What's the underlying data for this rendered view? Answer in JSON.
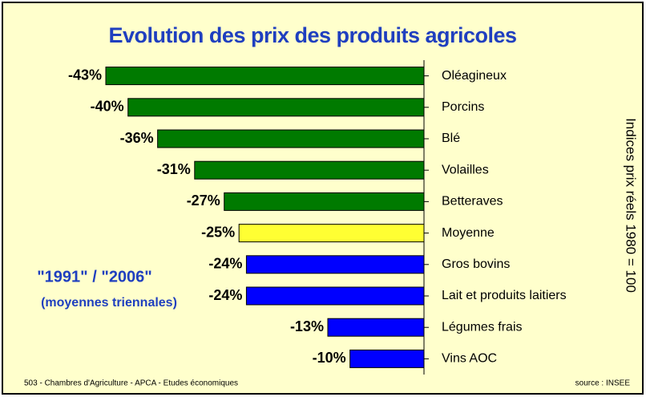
{
  "chart_data": {
    "type": "bar",
    "orientation": "horizontal",
    "title": "Evolution des prix des produits agricoles",
    "annotations": [
      "\"1991\" / \"2006\"",
      "(moyennes triennales)"
    ],
    "y2_label": "Indices prix réels 1980 = 100",
    "footer_left": "503 - Chambres d'Agriculture - APCA - Etudes économiques",
    "footer_right": "source : INSEE",
    "categories": [
      "Oléagineux",
      "Porcins",
      "Blé",
      "Volailles",
      "Betteraves",
      "Moyenne",
      "Gros bovins",
      "Lait et produits laitiers",
      "Légumes frais",
      "Vins AOC"
    ],
    "values": [
      -43,
      -40,
      -36,
      -31,
      -27,
      -25,
      -24,
      -24,
      -13,
      -10
    ],
    "value_labels": [
      "-43%",
      "-40%",
      "-36%",
      "-31%",
      "-27%",
      "-25%",
      "-24%",
      "-24%",
      "-13%",
      "-10%"
    ],
    "colors": [
      "#007a00",
      "#007a00",
      "#007a00",
      "#007a00",
      "#007a00",
      "#ffff33",
      "#0000ff",
      "#0000ff",
      "#0000ff",
      "#0000ff"
    ],
    "xlim": [
      -43,
      0
    ]
  }
}
